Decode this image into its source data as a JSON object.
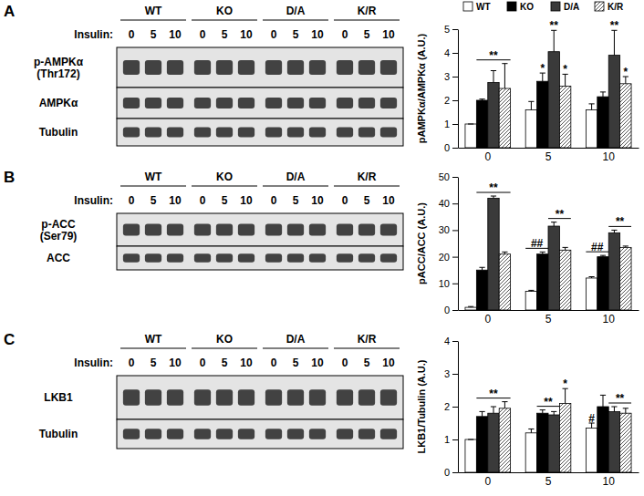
{
  "panels": [
    {
      "label": "A",
      "blot": {
        "groups": [
          "WT",
          "KO",
          "D/A",
          "K/R"
        ],
        "treatment_label": "Insulin:",
        "lanes": [
          "0",
          "5",
          "10"
        ],
        "rows": [
          {
            "label": [
              "p-AMPKα",
              "(Thr172)"
            ]
          },
          {
            "label": [
              "AMPKα"
            ]
          },
          {
            "label": [
              "Tubulin"
            ]
          }
        ]
      }
    },
    {
      "label": "B",
      "blot": {
        "groups": [
          "WT",
          "KO",
          "D/A",
          "K/R"
        ],
        "treatment_label": "Insulin:",
        "lanes": [
          "0",
          "5",
          "10"
        ],
        "rows": [
          {
            "label": [
              "p-ACC",
              "(Ser79)"
            ]
          },
          {
            "label": [
              "ACC"
            ]
          }
        ]
      }
    },
    {
      "label": "C",
      "blot": {
        "groups": [
          "WT",
          "KO",
          "D/A",
          "K/R"
        ],
        "treatment_label": "Insulin:",
        "lanes": [
          "0",
          "5",
          "10"
        ],
        "rows": [
          {
            "label": [
              "LKB1"
            ]
          },
          {
            "label": [
              "Tubulin"
            ]
          }
        ]
      }
    }
  ],
  "chart_data": [
    {
      "type": "bar",
      "y_label": "pAMPKα/AMPKα (A.U.)",
      "categories": [
        "0",
        "5",
        "10"
      ],
      "ylim": [
        0,
        5
      ],
      "yticks": [
        0,
        1,
        2,
        3,
        4,
        5
      ],
      "legend": "top",
      "series": [
        {
          "name": "WT",
          "color": "#ffffff",
          "values": [
            1.0,
            1.6,
            1.6
          ],
          "errors": [
            0,
            0.35,
            0.25
          ]
        },
        {
          "name": "KO",
          "color": "#000000",
          "values": [
            2.0,
            2.8,
            2.15
          ],
          "errors": [
            0.05,
            0.35,
            0.2
          ]
        },
        {
          "name": "D/A",
          "color": "#3a3a3a",
          "values": [
            2.75,
            4.05,
            3.9
          ],
          "errors": [
            0.5,
            0.9,
            1.05
          ]
        },
        {
          "name": "K/R",
          "color": "#555555",
          "marker": "hatch",
          "values": [
            2.5,
            2.6,
            2.7
          ],
          "errors": [
            1.05,
            0.5,
            0.3
          ]
        }
      ],
      "annotations": [
        {
          "text": "**",
          "category": 0,
          "series": [
            1,
            3
          ]
        },
        {
          "text": "*",
          "category": 1,
          "series": [
            1
          ]
        },
        {
          "text": "**",
          "category": 1,
          "series": [
            2
          ]
        },
        {
          "text": "*",
          "category": 1,
          "series": [
            3
          ]
        },
        {
          "text": "**",
          "category": 2,
          "series": [
            2
          ]
        },
        {
          "text": "*",
          "category": 2,
          "series": [
            3
          ]
        }
      ]
    },
    {
      "type": "bar",
      "y_label": "pACC/ACC (A.U.)",
      "categories": [
        "0",
        "5",
        "10"
      ],
      "ylim": [
        0,
        50
      ],
      "yticks": [
        0,
        10,
        20,
        30,
        40,
        50
      ],
      "series": [
        {
          "color": "#ffffff",
          "values": [
            1,
            7,
            12
          ],
          "errors": [
            0.3,
            0.4,
            0.5
          ]
        },
        {
          "color": "#000000",
          "values": [
            15,
            21,
            20
          ],
          "errors": [
            1,
            0.8,
            0.5
          ]
        },
        {
          "color": "#3a3a3a",
          "values": [
            42,
            31.5,
            29
          ],
          "errors": [
            0.8,
            1.5,
            1
          ]
        },
        {
          "color": "#555555",
          "marker": "hatch",
          "values": [
            21,
            22.5,
            23.5
          ],
          "errors": [
            0.8,
            1,
            0.5
          ]
        }
      ],
      "annotations": [
        {
          "text": "**",
          "category": 0,
          "series": [
            1,
            3
          ]
        },
        {
          "text": "##",
          "category": 1,
          "series": [
            0,
            1
          ]
        },
        {
          "text": "**",
          "category": 1,
          "series": [
            2,
            3
          ]
        },
        {
          "text": "##",
          "category": 2,
          "series": [
            0,
            1
          ]
        },
        {
          "text": "**",
          "category": 2,
          "series": [
            2,
            3
          ]
        }
      ]
    },
    {
      "type": "bar",
      "y_label": "LKB1/Tubulin (A.U.)",
      "categories": [
        "0",
        "5",
        "10"
      ],
      "ylim": [
        0,
        4
      ],
      "yticks": [
        0,
        1,
        2,
        3,
        4
      ],
      "series": [
        {
          "color": "#ffffff",
          "values": [
            1,
            1.2,
            1.35
          ],
          "errors": [
            0,
            0.12,
            0.15
          ]
        },
        {
          "color": "#000000",
          "values": [
            1.7,
            1.8,
            2.0
          ],
          "errors": [
            0.15,
            0.1,
            0.35
          ]
        },
        {
          "color": "#3a3a3a",
          "values": [
            1.8,
            1.75,
            1.85
          ],
          "errors": [
            0.2,
            0.1,
            0.15
          ]
        },
        {
          "color": "#555555",
          "marker": "hatch",
          "values": [
            1.95,
            2.1,
            1.8
          ],
          "errors": [
            0.2,
            0.45,
            0.15
          ]
        }
      ],
      "annotations": [
        {
          "text": "**",
          "category": 0,
          "series": [
            1,
            3
          ]
        },
        {
          "text": "**",
          "category": 1,
          "series": [
            1,
            2
          ]
        },
        {
          "text": "*",
          "category": 1,
          "series": [
            3
          ]
        },
        {
          "text": "#",
          "category": 2,
          "series": [
            0
          ]
        },
        {
          "text": "**",
          "category": 2,
          "series": [
            2,
            3
          ]
        }
      ]
    }
  ]
}
